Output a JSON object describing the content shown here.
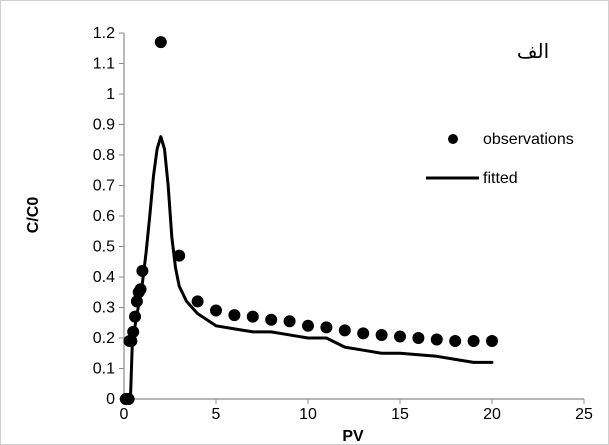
{
  "chart_data": {
    "type": "scatter",
    "title": "",
    "xlabel": "PV",
    "ylabel": "C/C0",
    "annotation": "الف",
    "xlim": [
      0,
      25
    ],
    "ylim": [
      0,
      1.2
    ],
    "x_ticks": [
      0,
      5,
      10,
      15,
      20,
      25
    ],
    "y_ticks": [
      0,
      0.1,
      0.2,
      0.3,
      0.4,
      0.5,
      0.6,
      0.7,
      0.8,
      0.9,
      1,
      1.1,
      1.2
    ],
    "x_tick_labels": [
      "0",
      "5",
      "10",
      "15",
      "20",
      "25"
    ],
    "y_tick_labels": [
      "0",
      "0.1",
      "0.2",
      "0.3",
      "0.4",
      "0.5",
      "0.6",
      "0.7",
      "0.8",
      "0.9",
      "1",
      "1.1",
      "1.2"
    ],
    "grid": false,
    "legend_position": "right",
    "colors": {
      "observations": "#000000",
      "fitted": "#000000",
      "axis": "#8c8c8c"
    },
    "series": [
      {
        "name": "observations",
        "kind": "scatter",
        "points": [
          [
            0.1,
            0.0
          ],
          [
            0.25,
            0.0
          ],
          [
            0.3,
            0.19
          ],
          [
            0.4,
            0.19
          ],
          [
            0.5,
            0.22
          ],
          [
            0.6,
            0.27
          ],
          [
            0.7,
            0.32
          ],
          [
            0.8,
            0.35
          ],
          [
            0.9,
            0.36
          ],
          [
            1.0,
            0.42
          ],
          [
            2.0,
            1.17
          ],
          [
            3.0,
            0.47
          ],
          [
            4.0,
            0.32
          ],
          [
            5.0,
            0.29
          ],
          [
            6.0,
            0.275
          ],
          [
            7.0,
            0.27
          ],
          [
            8.0,
            0.26
          ],
          [
            9.0,
            0.255
          ],
          [
            10.0,
            0.24
          ],
          [
            11.0,
            0.235
          ],
          [
            12.0,
            0.225
          ],
          [
            13.0,
            0.215
          ],
          [
            14.0,
            0.21
          ],
          [
            15.0,
            0.205
          ],
          [
            16.0,
            0.2
          ],
          [
            17.0,
            0.195
          ],
          [
            18.0,
            0.19
          ],
          [
            19.0,
            0.19
          ],
          [
            20.0,
            0.19
          ]
        ]
      },
      {
        "name": "fitted",
        "kind": "line",
        "points": [
          [
            0.0,
            0.0
          ],
          [
            0.35,
            0.0
          ],
          [
            0.45,
            0.18
          ],
          [
            0.6,
            0.24
          ],
          [
            0.8,
            0.31
          ],
          [
            1.0,
            0.38
          ],
          [
            1.2,
            0.48
          ],
          [
            1.4,
            0.6
          ],
          [
            1.6,
            0.73
          ],
          [
            1.8,
            0.82
          ],
          [
            2.0,
            0.86
          ],
          [
            2.2,
            0.82
          ],
          [
            2.4,
            0.7
          ],
          [
            2.6,
            0.53
          ],
          [
            2.8,
            0.43
          ],
          [
            3.0,
            0.37
          ],
          [
            3.4,
            0.32
          ],
          [
            4.0,
            0.28
          ],
          [
            5.0,
            0.24
          ],
          [
            6.0,
            0.23
          ],
          [
            7.0,
            0.22
          ],
          [
            8.0,
            0.22
          ],
          [
            9.0,
            0.21
          ],
          [
            10.0,
            0.2
          ],
          [
            11.0,
            0.2
          ],
          [
            12.0,
            0.17
          ],
          [
            13.0,
            0.16
          ],
          [
            14.0,
            0.15
          ],
          [
            15.0,
            0.15
          ],
          [
            16.0,
            0.145
          ],
          [
            17.0,
            0.14
          ],
          [
            18.0,
            0.13
          ],
          [
            19.0,
            0.12
          ],
          [
            20.0,
            0.12
          ]
        ]
      }
    ]
  }
}
